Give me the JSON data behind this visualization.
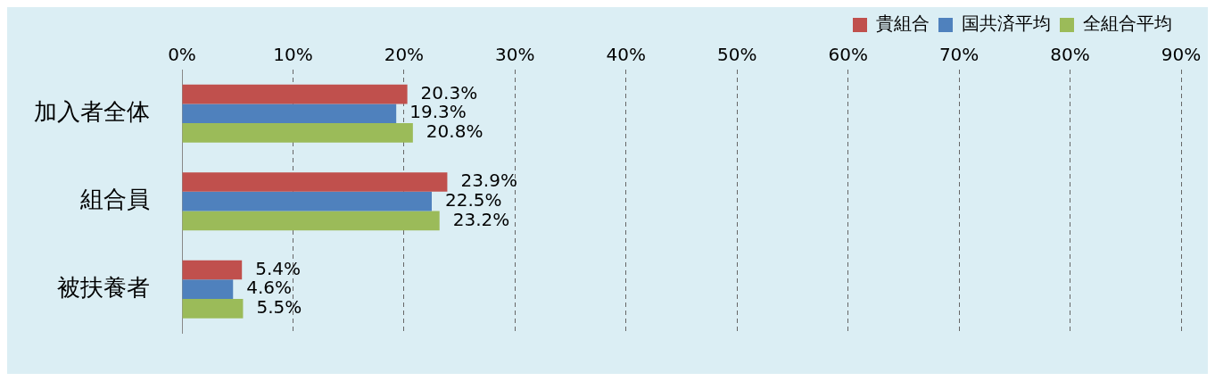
{
  "chart_data": {
    "type": "bar",
    "orientation": "horizontal",
    "categories": [
      "加入者全体",
      "組合員",
      "被扶養者"
    ],
    "series": [
      {
        "name": "貴組合",
        "color": "#c0504d",
        "values": [
          20.3,
          23.9,
          5.4
        ],
        "value_labels": [
          "20.3%",
          "23.9%",
          "5.4%"
        ]
      },
      {
        "name": "国共済平均",
        "color": "#4f81bd",
        "values": [
          19.3,
          22.5,
          4.6
        ],
        "value_labels": [
          "19.3%",
          "22.5%",
          "4.6%"
        ]
      },
      {
        "name": "全組合平均",
        "color": "#9bbb59",
        "values": [
          20.8,
          23.2,
          5.5
        ],
        "value_labels": [
          "20.8%",
          "23.2%",
          "5.5%"
        ]
      }
    ],
    "xlim": [
      0,
      90
    ],
    "xticks": [
      {
        "value": 0,
        "label": "0%"
      },
      {
        "value": 10,
        "label": "10%"
      },
      {
        "value": 20,
        "label": "20%"
      },
      {
        "value": 30,
        "label": "30%"
      },
      {
        "value": 40,
        "label": "40%"
      },
      {
        "value": 50,
        "label": "50%"
      },
      {
        "value": 60,
        "label": "60%"
      },
      {
        "value": 70,
        "label": "70%"
      },
      {
        "value": 80,
        "label": "80%"
      },
      {
        "value": 90,
        "label": "90%"
      }
    ],
    "grid": "x",
    "legend": "top right"
  }
}
